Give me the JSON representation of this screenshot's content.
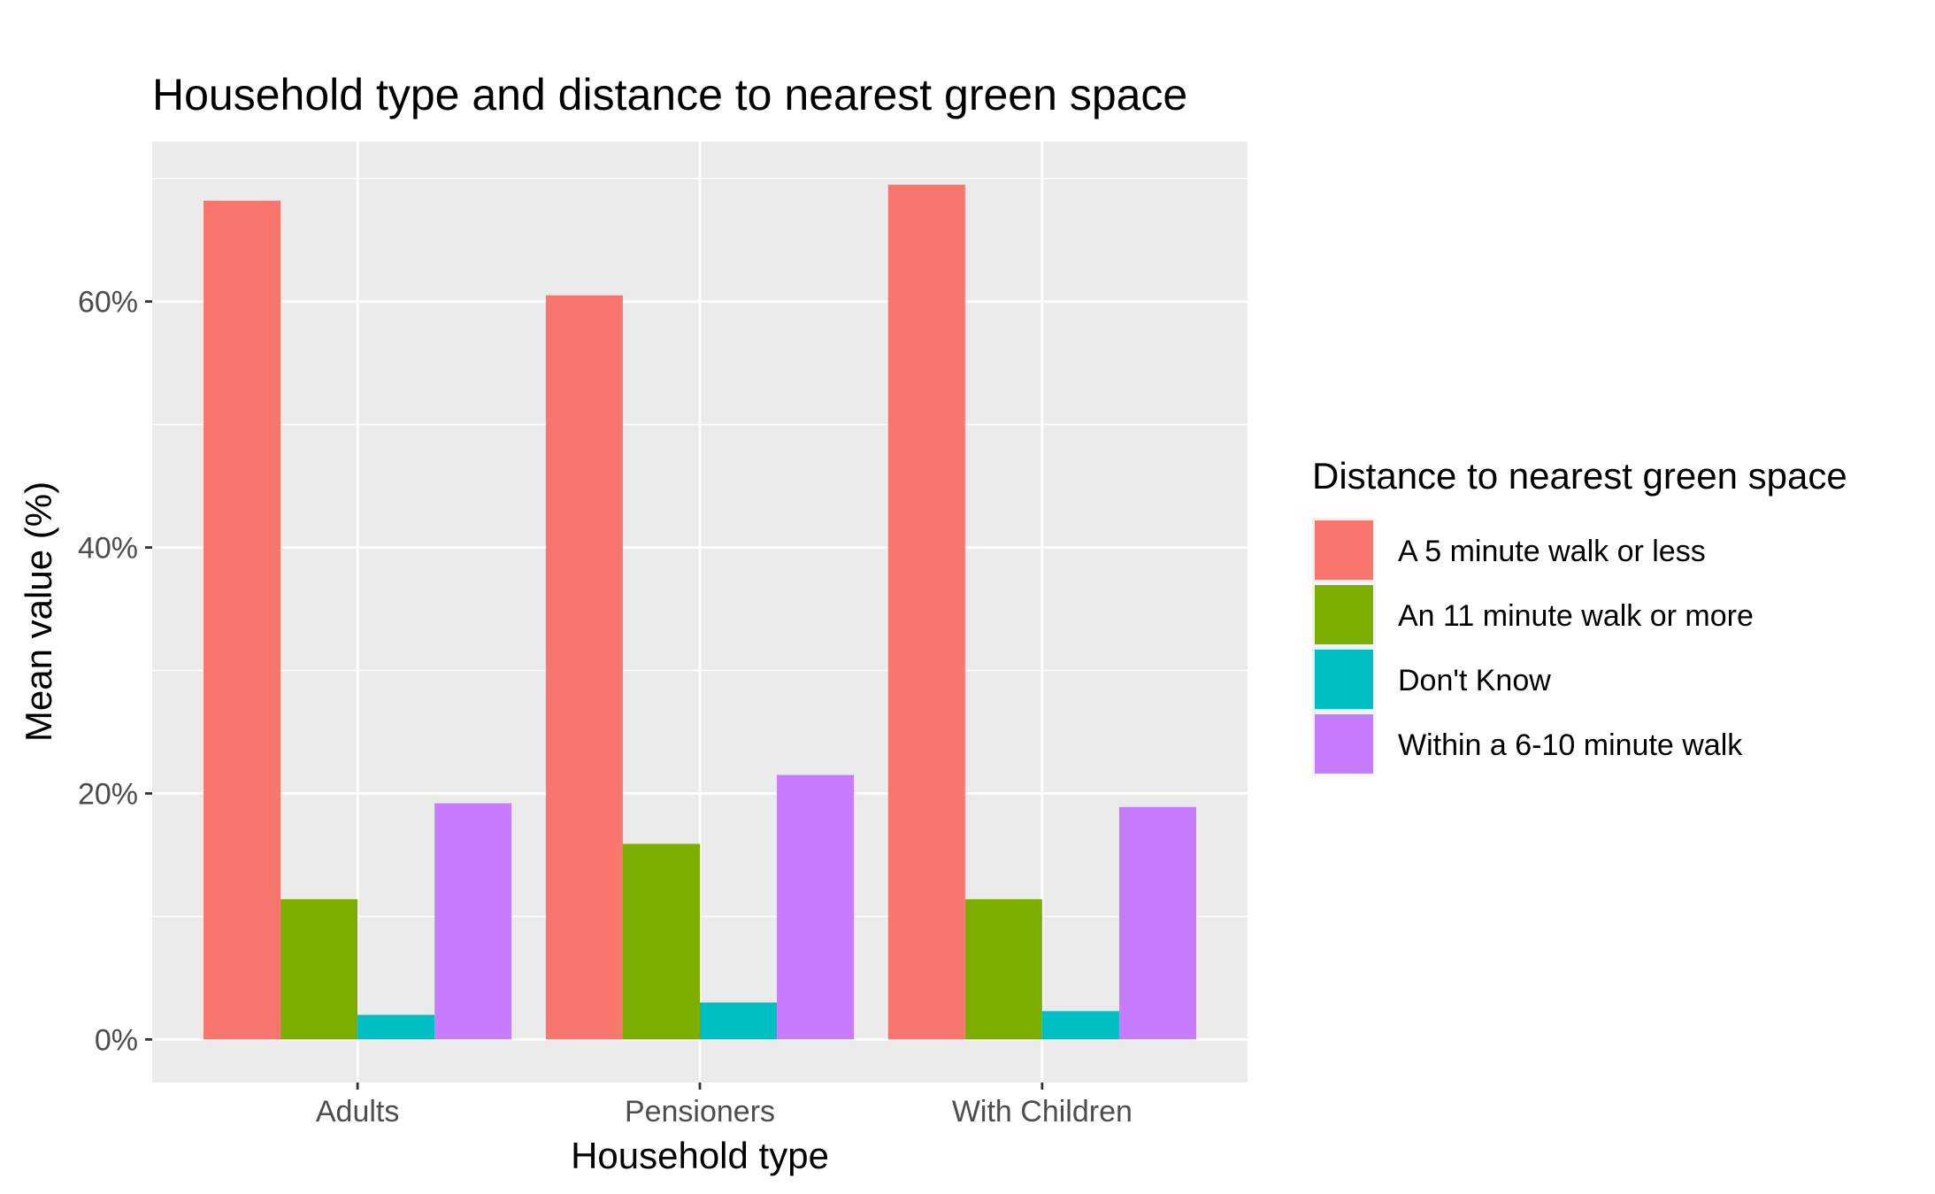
{
  "chart_data": {
    "type": "bar",
    "title": "Household type and distance to nearest green space",
    "xlabel": "Household type",
    "ylabel": "Mean value (%)",
    "categories": [
      "Adults",
      "Pensioners",
      "With Children"
    ],
    "series": [
      {
        "name": "A 5 minute walk or less",
        "color": "#F8766D",
        "values": [
          68.2,
          60.5,
          69.5
        ]
      },
      {
        "name": "An 11 minute walk or more",
        "color": "#7CAE00",
        "values": [
          11.4,
          15.9,
          11.4
        ]
      },
      {
        "name": "Don't Know",
        "color": "#00BFC4",
        "values": [
          2.0,
          3.0,
          2.3
        ]
      },
      {
        "name": "Within a 6-10 minute walk",
        "color": "#C77CFF",
        "values": [
          19.2,
          21.5,
          18.9
        ]
      }
    ],
    "yticks": [
      0,
      20,
      40,
      60
    ],
    "ytick_labels": [
      "0%",
      "20%",
      "40%",
      "60%"
    ],
    "ylim": [
      -3.5,
      73
    ],
    "grid": true,
    "legend": {
      "title": "Distance to nearest green space",
      "position": "right"
    }
  }
}
